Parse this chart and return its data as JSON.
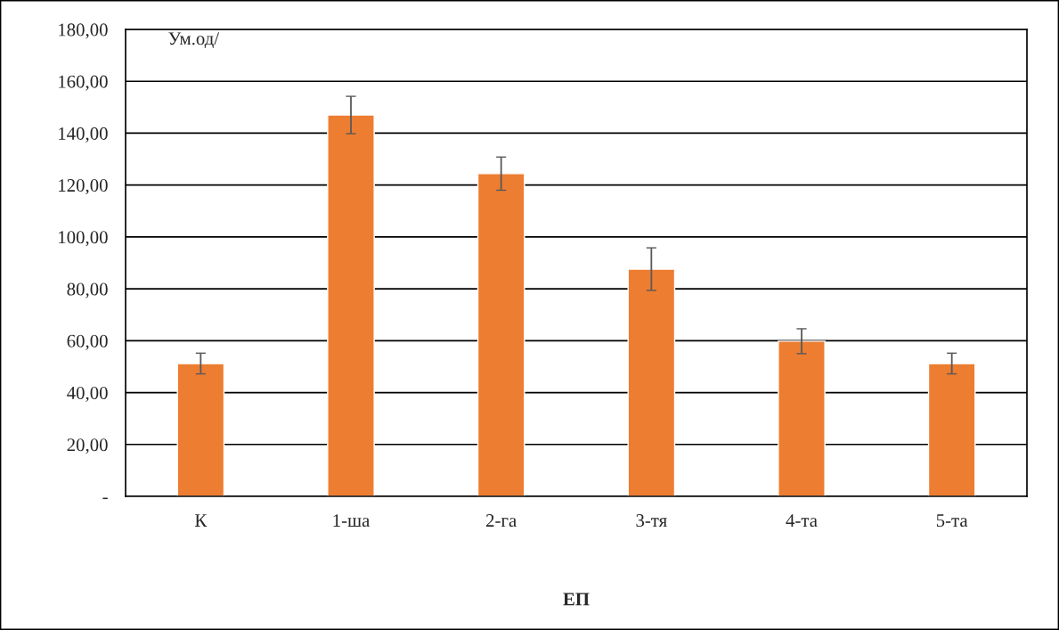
{
  "chart_data": {
    "type": "bar",
    "ylabel": "Ум.од/",
    "xlabel": "ЕП",
    "categories": [
      "К",
      "1-ша",
      "2-га",
      "3-тя",
      "4-та",
      "5-та"
    ],
    "values": [
      51.2,
      147.0,
      124.4,
      87.6,
      59.8,
      51.2
    ],
    "errors": [
      4.0,
      7.2,
      6.4,
      8.2,
      4.8,
      4.0
    ],
    "color": "#ed7d31",
    "ylim": [
      0,
      180
    ],
    "yticks": [
      {
        "value": 0,
        "label": "-"
      },
      {
        "value": 20,
        "label": "20,00"
      },
      {
        "value": 40,
        "label": "40,00"
      },
      {
        "value": 60,
        "label": "60,00"
      },
      {
        "value": 80,
        "label": "80,00"
      },
      {
        "value": 100,
        "label": "100,00"
      },
      {
        "value": 120,
        "label": "120,00"
      },
      {
        "value": 140,
        "label": "140,00"
      },
      {
        "value": 160,
        "label": "160,00"
      },
      {
        "value": 180,
        "label": "180,00"
      }
    ],
    "grid": "y",
    "legend": false
  }
}
